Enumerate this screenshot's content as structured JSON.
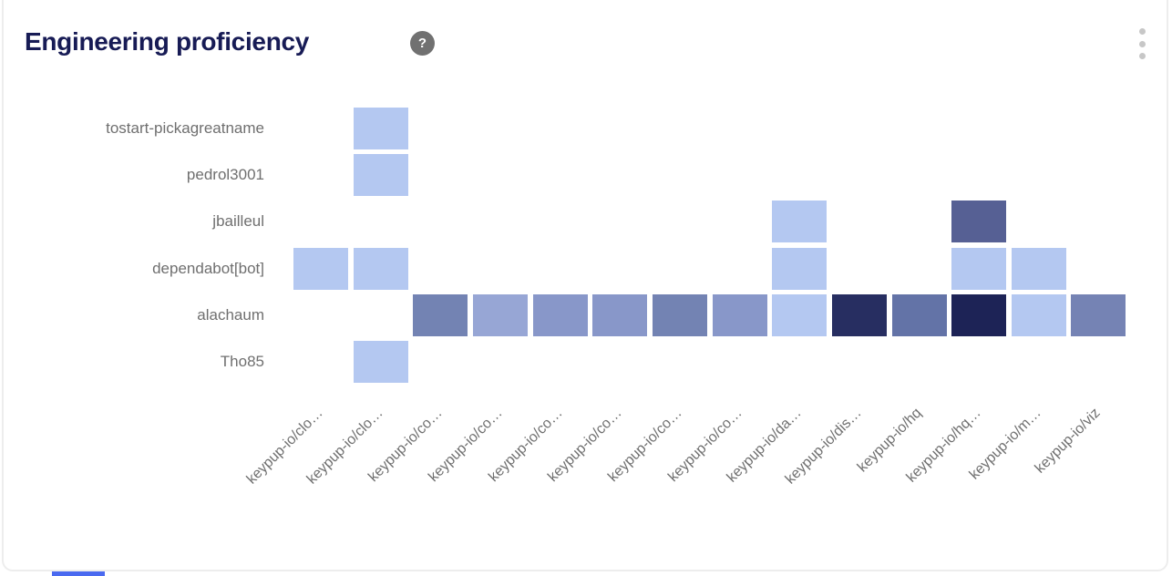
{
  "widget": {
    "title": "Engineering proficiency",
    "help_label": "?",
    "menu_icon": "kebab-vertical-icon"
  },
  "colors": {
    "title_text": "#171b55",
    "axis_label_text": "#6f6f6f",
    "help_icon_bg": "#717171",
    "kebab_dots": "#c7c7c7",
    "card_border": "#ededed",
    "bottom_bar": "#4a6af0"
  },
  "chart_data": {
    "type": "heatmap",
    "title": "Engineering proficiency",
    "legend_position": "none",
    "grid": "off",
    "rows": [
      "tostart-pickagreatname",
      "pedrol3001",
      "jbailleul",
      "dependabot[bot]",
      "alachaum",
      "Tho85"
    ],
    "columns": [
      "keypup-io/clo…",
      "keypup-io/clo…",
      "keypup-io/co…",
      "keypup-io/co…",
      "keypup-io/co…",
      "keypup-io/co…",
      "keypup-io/co…",
      "keypup-io/co…",
      "keypup-io/da…",
      "keypup-io/dis…",
      "keypup-io/hq",
      "keypup-io/hq…",
      "keypup-io/m…",
      "keypup-io/viz"
    ],
    "matrix": [
      [
        null,
        "#b4c8f1",
        null,
        null,
        null,
        null,
        null,
        null,
        null,
        null,
        null,
        null,
        null,
        null
      ],
      [
        null,
        "#b4c8f1",
        null,
        null,
        null,
        null,
        null,
        null,
        null,
        null,
        null,
        null,
        null,
        null
      ],
      [
        null,
        null,
        null,
        null,
        null,
        null,
        null,
        null,
        "#b4c8f1",
        null,
        null,
        "#566094",
        null,
        null
      ],
      [
        "#b4c8f1",
        "#b4c8f1",
        null,
        null,
        null,
        null,
        null,
        null,
        "#b4c8f1",
        null,
        null,
        "#b4c8f1",
        "#b4c8f1",
        null
      ],
      [
        null,
        null,
        "#7383b3",
        "#97a6d5",
        "#8897c9",
        "#8897c9",
        "#7383b3",
        "#8897c9",
        "#b4c8f1",
        "#272e61",
        "#6373a7",
        "#1d2356",
        "#b4c8f1",
        "#7583b4"
      ],
      [
        null,
        "#b4c8f1",
        null,
        null,
        null,
        null,
        null,
        null,
        null,
        null,
        null,
        null,
        null,
        null
      ]
    ]
  }
}
